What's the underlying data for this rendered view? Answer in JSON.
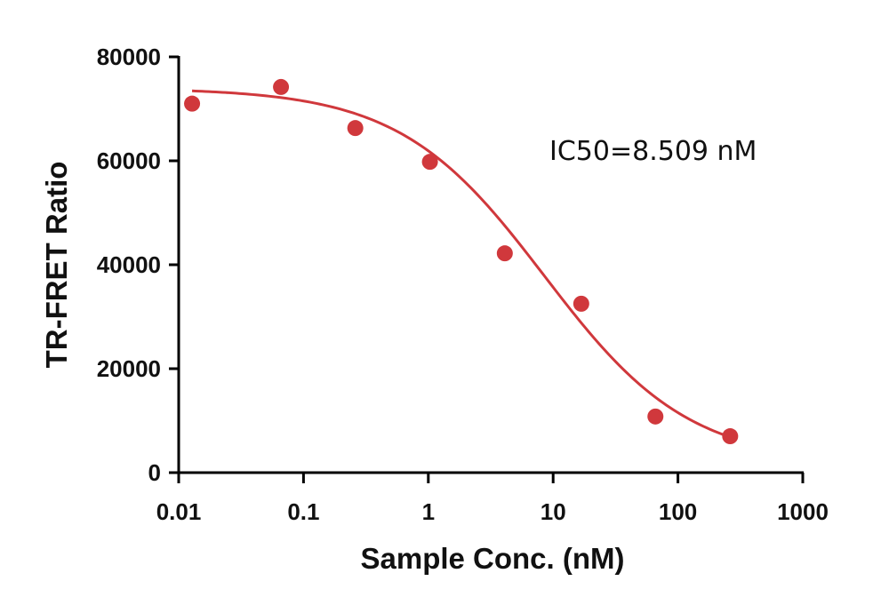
{
  "chart_data": {
    "type": "scatter",
    "xscale": "log",
    "xlim": [
      0.01,
      1000
    ],
    "ylim": [
      0,
      80000
    ],
    "xlabel": "Sample Conc. (nM)",
    "ylabel": "TR-FRET Ratio",
    "x_ticks": [
      0.01,
      0.1,
      1,
      10,
      100,
      1000
    ],
    "x_tick_labels": [
      "0.01",
      "0.1",
      "1",
      "10",
      "100",
      "1000"
    ],
    "y_ticks": [
      0,
      20000,
      40000,
      60000,
      80000
    ],
    "y_tick_labels": [
      "0",
      "20000",
      "40000",
      "60000",
      "80000"
    ],
    "grid": false,
    "color": "#d0383c",
    "annotation": "IC50=8.509 nM",
    "series": [
      {
        "points": [
          {
            "x": 0.0128,
            "y": 71000
          },
          {
            "x": 0.066,
            "y": 74200
          },
          {
            "x": 0.26,
            "y": 66300
          },
          {
            "x": 1.03,
            "y": 59800
          },
          {
            "x": 4.1,
            "y": 42200
          },
          {
            "x": 16.8,
            "y": 32500
          },
          {
            "x": 66,
            "y": 10800
          },
          {
            "x": 262,
            "y": 7000
          }
        ],
        "fit": {
          "model": "4PL",
          "ic50": 8.509,
          "top": 74000,
          "bottom": 1700,
          "hill": 0.75,
          "x_range": [
            0.0128,
            262
          ]
        }
      }
    ]
  }
}
